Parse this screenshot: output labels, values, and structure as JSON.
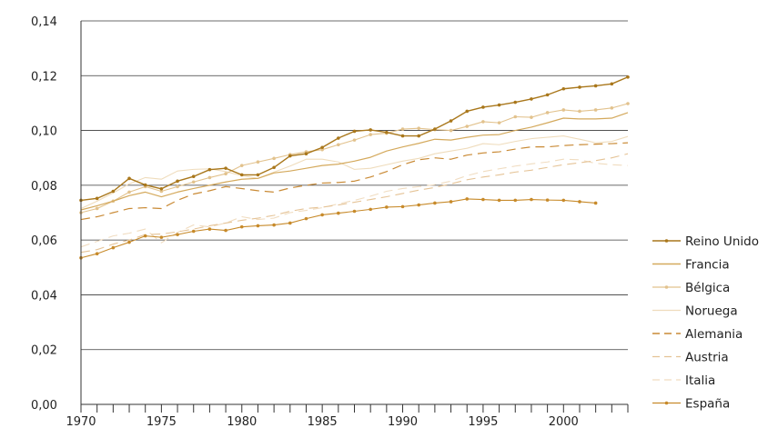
{
  "chart_data": {
    "type": "line",
    "title": "",
    "xlabel": "",
    "ylabel": "",
    "xlim": [
      1970,
      2004
    ],
    "ylim": [
      0,
      0.14
    ],
    "x_ticks": [
      1970,
      1975,
      1980,
      1985,
      1990,
      1995,
      2000
    ],
    "x_tick_labels": [
      "1970",
      "1975",
      "1980",
      "1985",
      "1990",
      "1995",
      "2000"
    ],
    "y_ticks": [
      0,
      0.02,
      0.04,
      0.06,
      0.08,
      0.1,
      0.12,
      0.14
    ],
    "y_tick_labels": [
      "0,00",
      "0,02",
      "0,04",
      "0,06",
      "0,08",
      "0,10",
      "0,12",
      "0,14"
    ],
    "grid": "horizontal",
    "legend_position": "right",
    "x": [
      1970,
      1971,
      1972,
      1973,
      1974,
      1975,
      1976,
      1977,
      1978,
      1979,
      1980,
      1981,
      1982,
      1983,
      1984,
      1985,
      1986,
      1987,
      1988,
      1989,
      1990,
      1991,
      1992,
      1993,
      1994,
      1995,
      1996,
      1997,
      1998,
      1999,
      2000,
      2001,
      2002,
      2003,
      2004
    ],
    "series": [
      {
        "name": "Reino Unido",
        "color": "#a9771b",
        "dash": "solid",
        "width": 1.4,
        "markers": true,
        "values": [
          0.0745,
          0.0752,
          0.0778,
          0.0825,
          0.0801,
          0.0787,
          0.0815,
          0.0832,
          0.0857,
          0.0862,
          0.0838,
          0.0838,
          0.0865,
          0.0907,
          0.0915,
          0.0938,
          0.0972,
          0.0997,
          0.1002,
          0.0993,
          0.098,
          0.098,
          0.1005,
          0.1035,
          0.107,
          0.1085,
          0.1093,
          0.1103,
          0.1115,
          0.113,
          0.1152,
          0.1158,
          0.1163,
          0.117,
          0.1195
        ]
      },
      {
        "name": "Francia",
        "color": "#d4a95c",
        "dash": "solid",
        "width": 1.2,
        "markers": false,
        "values": [
          0.071,
          0.0725,
          0.0742,
          0.0762,
          0.0775,
          0.0758,
          0.0775,
          0.0788,
          0.08,
          0.0812,
          0.0822,
          0.0825,
          0.0845,
          0.0852,
          0.0862,
          0.0872,
          0.0877,
          0.0888,
          0.0902,
          0.0925,
          0.094,
          0.0953,
          0.0968,
          0.0965,
          0.0975,
          0.0983,
          0.0985,
          0.1,
          0.1012,
          0.1028,
          0.1045,
          0.1042,
          0.1042,
          0.1045,
          0.1065
        ]
      },
      {
        "name": "Bélgica",
        "color": "#e2c28d",
        "dash": "solid",
        "width": 1.1,
        "markers": true,
        "values": [
          0.07,
          0.0715,
          0.0742,
          0.0775,
          0.0795,
          0.0778,
          0.0795,
          0.0812,
          0.0828,
          0.0842,
          0.0872,
          0.0885,
          0.0898,
          0.0912,
          0.0922,
          0.093,
          0.0948,
          0.0965,
          0.0985,
          0.099,
          0.1005,
          0.1008,
          0.1003,
          0.1,
          0.1015,
          0.1032,
          0.1028,
          0.105,
          0.1048,
          0.1065,
          0.1075,
          0.107,
          0.1075,
          0.1082,
          0.1098
        ]
      },
      {
        "name": "Noruega",
        "color": "#efdcbc",
        "dash": "solid",
        "width": 1.1,
        "markers": false,
        "values": [
          0.0715,
          0.0742,
          0.0772,
          0.0805,
          0.0828,
          0.0822,
          0.0852,
          0.0858,
          0.086,
          0.085,
          0.0835,
          0.0825,
          0.0848,
          0.087,
          0.0895,
          0.0895,
          0.0885,
          0.0858,
          0.0862,
          0.0875,
          0.0888,
          0.0898,
          0.0915,
          0.0925,
          0.0935,
          0.0952,
          0.0948,
          0.096,
          0.097,
          0.0975,
          0.098,
          0.0968,
          0.0955,
          0.096,
          0.0978
        ]
      },
      {
        "name": "Alemania",
        "color": "#c98a35",
        "dash": "10,6",
        "width": 1.2,
        "markers": false,
        "values": [
          0.0675,
          0.0685,
          0.07,
          0.0715,
          0.0718,
          0.0715,
          0.0745,
          0.0768,
          0.078,
          0.0795,
          0.0788,
          0.078,
          0.0775,
          0.079,
          0.08,
          0.0808,
          0.081,
          0.0815,
          0.083,
          0.085,
          0.0875,
          0.0893,
          0.09,
          0.0895,
          0.091,
          0.0918,
          0.0922,
          0.0932,
          0.094,
          0.094,
          0.0945,
          0.0948,
          0.095,
          0.0952,
          0.0955
        ]
      },
      {
        "name": "Austria",
        "color": "#e5c396",
        "dash": "10,6",
        "width": 1.1,
        "markers": false,
        "values": [
          0.0555,
          0.0565,
          0.0585,
          0.06,
          0.062,
          0.0622,
          0.063,
          0.064,
          0.0652,
          0.0662,
          0.0672,
          0.068,
          0.069,
          0.0705,
          0.0715,
          0.072,
          0.0728,
          0.0738,
          0.0748,
          0.0758,
          0.077,
          0.0782,
          0.0792,
          0.0805,
          0.082,
          0.083,
          0.0838,
          0.0848,
          0.0855,
          0.0865,
          0.0875,
          0.0882,
          0.089,
          0.09,
          0.0915
        ]
      },
      {
        "name": "Italia",
        "color": "#f0dcc0",
        "dash": "10,6",
        "width": 1.1,
        "markers": false,
        "values": [
          0.0575,
          0.0595,
          0.0615,
          0.0625,
          0.064,
          0.059,
          0.0628,
          0.0655,
          0.0648,
          0.0662,
          0.0685,
          0.0675,
          0.068,
          0.07,
          0.0708,
          0.0718,
          0.0732,
          0.0745,
          0.076,
          0.0778,
          0.0788,
          0.0795,
          0.0802,
          0.0815,
          0.0835,
          0.085,
          0.086,
          0.087,
          0.0878,
          0.0885,
          0.0895,
          0.0893,
          0.088,
          0.0875,
          0.0872
        ]
      },
      {
        "name": "España",
        "color": "#c78a2a",
        "dash": "solid",
        "width": 1.1,
        "markers": true,
        "values": [
          0.0535,
          0.055,
          0.0572,
          0.0592,
          0.0615,
          0.061,
          0.062,
          0.0632,
          0.064,
          0.0635,
          0.0648,
          0.0652,
          0.0655,
          0.0662,
          0.0678,
          0.0692,
          0.0698,
          0.0705,
          0.0712,
          0.072,
          0.0722,
          0.0728,
          0.0735,
          0.074,
          0.075,
          0.0748,
          0.0745,
          0.0745,
          0.0748,
          0.0746,
          0.0745,
          0.074,
          0.0735,
          null,
          null
        ]
      }
    ]
  }
}
